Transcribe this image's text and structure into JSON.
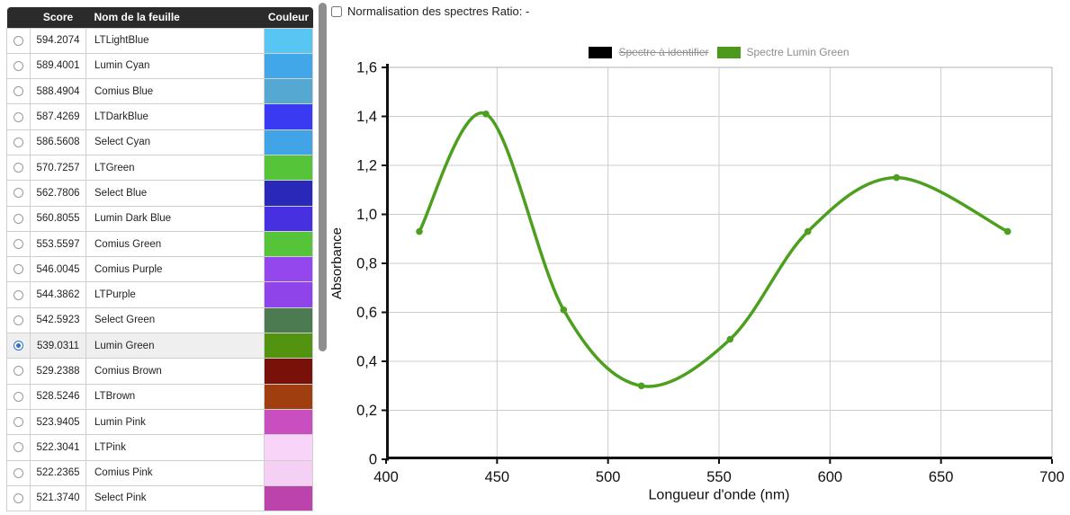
{
  "normalization": {
    "label": "Normalisation des spectres Ratio: -",
    "checked": false
  },
  "table": {
    "headers": {
      "radio": "",
      "score": "Score",
      "name": "Nom de la feuille",
      "color": "Couleur"
    },
    "rows": [
      {
        "score": "594.2074",
        "name": "LTLightBlue",
        "color": "#58c6f2",
        "selected": false
      },
      {
        "score": "589.4001",
        "name": "Lumin Cyan",
        "color": "#41a7e8",
        "selected": false
      },
      {
        "score": "588.4904",
        "name": "Comius Blue",
        "color": "#55a8d2",
        "selected": false
      },
      {
        "score": "587.4269",
        "name": "LTDarkBlue",
        "color": "#3a3af2",
        "selected": false
      },
      {
        "score": "586.5608",
        "name": "Select Cyan",
        "color": "#41a4e6",
        "selected": false
      },
      {
        "score": "570.7257",
        "name": "LTGreen",
        "color": "#55c438",
        "selected": false
      },
      {
        "score": "562.7806",
        "name": "Select Blue",
        "color": "#2a28b8",
        "selected": false
      },
      {
        "score": "560.8055",
        "name": "Lumin Dark Blue",
        "color": "#4630e0",
        "selected": false
      },
      {
        "score": "553.5597",
        "name": "Comius Green",
        "color": "#55c438",
        "selected": false
      },
      {
        "score": "546.0045",
        "name": "Comius Purple",
        "color": "#9347ec",
        "selected": false
      },
      {
        "score": "544.3862",
        "name": "LTPurple",
        "color": "#8f44ea",
        "selected": false
      },
      {
        "score": "542.5923",
        "name": "Select Green",
        "color": "#4c7b52",
        "selected": false
      },
      {
        "score": "539.0311",
        "name": "Lumin Green",
        "color": "#529410",
        "selected": true
      },
      {
        "score": "529.2388",
        "name": "Comius Brown",
        "color": "#7a1108",
        "selected": false
      },
      {
        "score": "528.5246",
        "name": "LTBrown",
        "color": "#a03e10",
        "selected": false
      },
      {
        "score": "523.9405",
        "name": "Lumin Pink",
        "color": "#c94fc0",
        "selected": false
      },
      {
        "score": "522.3041",
        "name": "LTPink",
        "color": "#f8d4f8",
        "selected": false
      },
      {
        "score": "522.2365",
        "name": "Comius Pink",
        "color": "#f6d0f4",
        "selected": false
      },
      {
        "score": "521.3740",
        "name": "Select Pink",
        "color": "#bc42ac",
        "selected": false
      }
    ]
  },
  "legend": {
    "reference": {
      "label": "Spectre à identifier",
      "color": "#000000",
      "struck": true
    },
    "selected": {
      "label": "Spectre Lumin Green",
      "color": "#4c9a1c",
      "struck": false
    }
  },
  "chart_data": {
    "type": "line",
    "title": "",
    "xlabel": "Longueur d'onde (nm)",
    "ylabel": "Absorbance",
    "xlim": [
      400,
      700
    ],
    "ylim": [
      0,
      1.6
    ],
    "x_ticks": [
      400,
      450,
      500,
      550,
      600,
      650,
      700
    ],
    "y_ticks": [
      0,
      0.2,
      0.4,
      0.6,
      0.8,
      1.0,
      1.2,
      1.4,
      1.6
    ],
    "grid": true,
    "decimal_separator": ",",
    "legend_position": "top-center",
    "series": [
      {
        "name": "Spectre à identifier",
        "color": "#000000",
        "visible": false,
        "x": [],
        "y": []
      },
      {
        "name": "Spectre Lumin Green",
        "color": "#4ca01e",
        "visible": true,
        "x": [
          415,
          445,
          480,
          515,
          555,
          590,
          630,
          680
        ],
        "y": [
          0.93,
          1.41,
          0.61,
          0.3,
          0.49,
          0.93,
          1.15,
          0.93
        ]
      }
    ]
  }
}
